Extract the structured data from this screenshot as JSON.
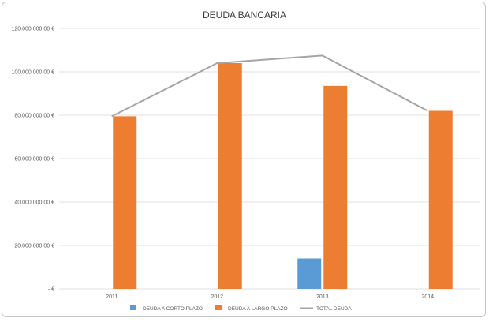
{
  "chart_data": {
    "type": "bar",
    "title": "DEUDA  BANCARIA",
    "xlabel": "",
    "ylabel": "",
    "categories": [
      "2011",
      "2012",
      "2013",
      "2014"
    ],
    "ylim": [
      0,
      120000000
    ],
    "yticks": [
      {
        "value": 0,
        "label": "-   €"
      },
      {
        "value": 20000000,
        "label": "20.000.000,00 €"
      },
      {
        "value": 40000000,
        "label": "40.000.000,00 €"
      },
      {
        "value": 60000000,
        "label": "60.000.000,00 €"
      },
      {
        "value": 80000000,
        "label": "80.000.000,00 €"
      },
      {
        "value": 100000000,
        "label": "100.000.000,00 €"
      },
      {
        "value": 120000000,
        "label": "120.000.000,00 €"
      }
    ],
    "grid": true,
    "legend_position": "bottom",
    "series": [
      {
        "name": "DEUDA A CORTO PLAZO",
        "kind": "bar",
        "color": "#5b9bd5",
        "values": [
          0,
          0,
          14000000,
          0
        ]
      },
      {
        "name": "DEUDA A LARGO PLAZO",
        "kind": "bar",
        "color": "#ed7d31",
        "values": [
          79500000,
          104000000,
          93500000,
          82000000
        ]
      },
      {
        "name": "TOTAL DEUDA",
        "kind": "line",
        "color": "#a5a5a5",
        "values": [
          79500000,
          104000000,
          107500000,
          82000000
        ]
      }
    ]
  }
}
